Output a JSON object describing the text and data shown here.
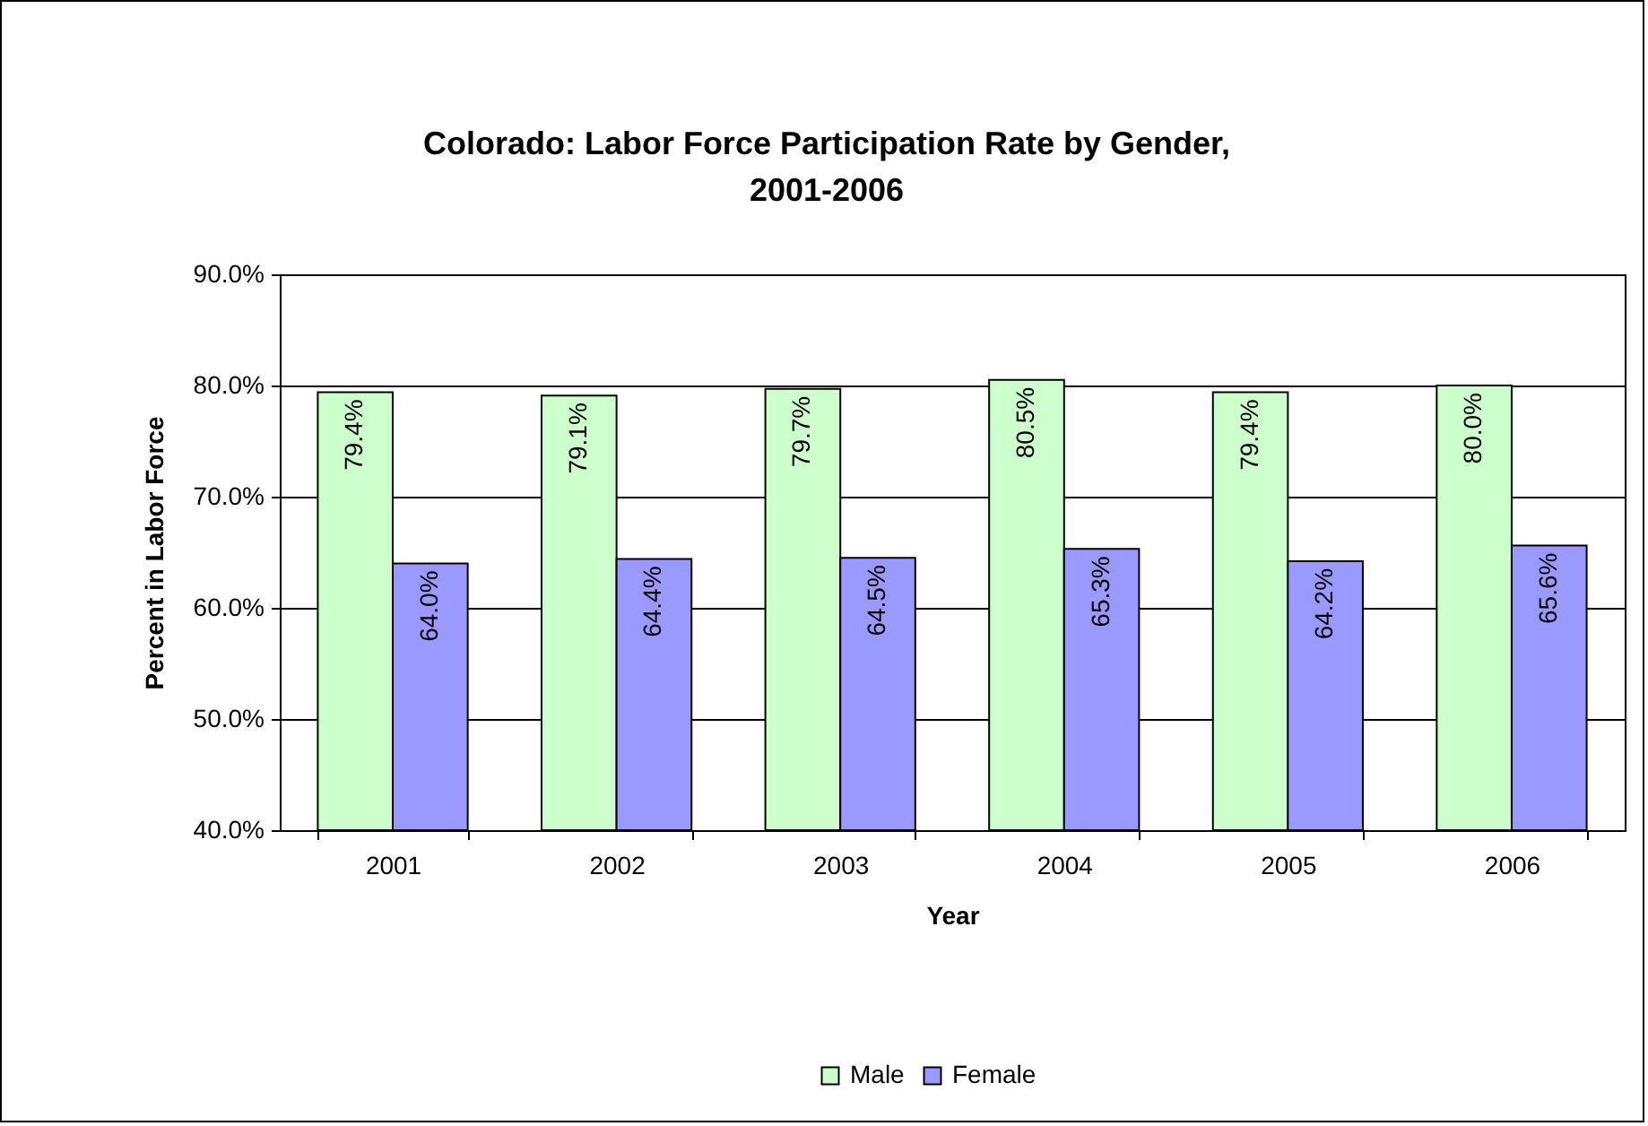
{
  "chart_data": {
    "type": "bar",
    "title": "Colorado: Labor Force Participation Rate by Gender, 2001-2006",
    "xlabel": "Year",
    "ylabel": "Percent in Labor Force",
    "categories": [
      "2001",
      "2002",
      "2003",
      "2004",
      "2005",
      "2006"
    ],
    "series": [
      {
        "name": "Male",
        "color": "#ccffcc",
        "values": [
          79.4,
          79.1,
          79.7,
          80.5,
          79.4,
          80.0
        ],
        "value_labels": [
          "79.4%",
          "79.1%",
          "79.7%",
          "80.5%",
          "79.4%",
          "80.0%"
        ]
      },
      {
        "name": "Female",
        "color": "#9999ff",
        "values": [
          64.0,
          64.4,
          64.5,
          65.3,
          64.2,
          65.6
        ],
        "value_labels": [
          "64.0%",
          "64.4%",
          "64.5%",
          "65.3%",
          "64.2%",
          "65.6%"
        ]
      }
    ],
    "ylim": [
      40,
      90
    ],
    "yticks": [
      {
        "value": 40,
        "label": "40.0%"
      },
      {
        "value": 50,
        "label": "50.0%"
      },
      {
        "value": 60,
        "label": "60.0%"
      },
      {
        "value": 70,
        "label": "70.0%"
      },
      {
        "value": 80,
        "label": "80.0%"
      },
      {
        "value": 90,
        "label": "90.0%"
      }
    ],
    "grid": "y",
    "legend": "bottom"
  }
}
